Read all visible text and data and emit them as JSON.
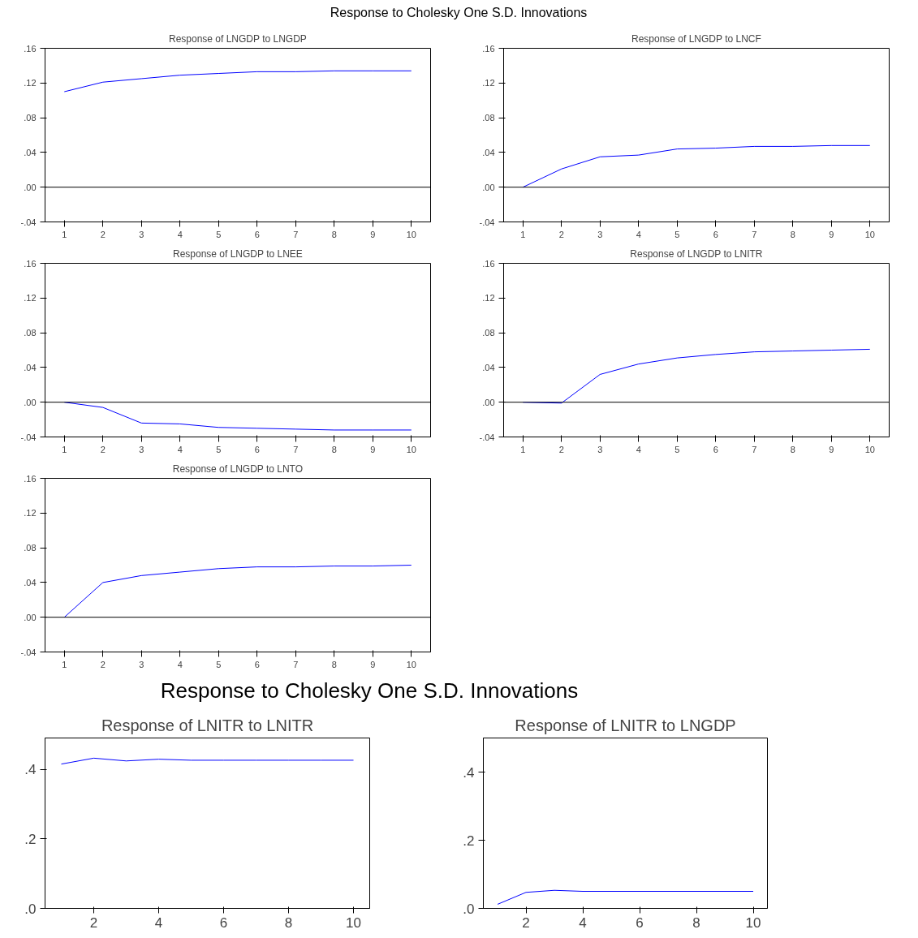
{
  "chart_data": [
    {
      "type": "line",
      "annotations": [
        "Response to Cholesky One S.D. Innovations"
      ],
      "title": "Response of LNGDP to LNGDP",
      "x": [
        1,
        2,
        3,
        4,
        5,
        6,
        7,
        8,
        9,
        10
      ],
      "values": [
        0.11,
        0.121,
        0.125,
        0.129,
        0.131,
        0.133,
        0.133,
        0.134,
        0.134,
        0.134
      ],
      "color": "#0000ff",
      "xlim": [
        0.5,
        10.5
      ],
      "xticks": [
        1,
        2,
        3,
        4,
        5,
        6,
        7,
        8,
        9,
        10
      ],
      "ylim": [
        -0.04,
        0.16
      ],
      "yticks": [
        {
          "value": -0.04,
          "label": "-.04"
        },
        {
          "value": 0,
          "label": ".00"
        },
        {
          "value": 0.04,
          "label": ".04"
        },
        {
          "value": 0.08,
          "label": ".08"
        },
        {
          "value": 0.12,
          "label": ".12"
        },
        {
          "value": 0.16,
          "label": ".16"
        }
      ],
      "ref_lines": [
        {
          "axis": "y",
          "value": 0
        }
      ]
    },
    {
      "type": "line",
      "title": "Response of LNGDP to LNCF",
      "x": [
        1,
        2,
        3,
        4,
        5,
        6,
        7,
        8,
        9,
        10
      ],
      "values": [
        0.0,
        0.021,
        0.035,
        0.037,
        0.044,
        0.045,
        0.047,
        0.047,
        0.048,
        0.048
      ],
      "color": "#0000ff",
      "xlim": [
        0.5,
        10.5
      ],
      "xticks": [
        1,
        2,
        3,
        4,
        5,
        6,
        7,
        8,
        9,
        10
      ],
      "ylim": [
        -0.04,
        0.16
      ],
      "yticks": [
        {
          "value": -0.04,
          "label": "-.04"
        },
        {
          "value": 0,
          "label": ".00"
        },
        {
          "value": 0.04,
          "label": ".04"
        },
        {
          "value": 0.08,
          "label": ".08"
        },
        {
          "value": 0.12,
          "label": ".12"
        },
        {
          "value": 0.16,
          "label": ".16"
        }
      ],
      "ref_lines": [
        {
          "axis": "y",
          "value": 0
        }
      ]
    },
    {
      "type": "line",
      "title": "Response of LNGDP to LNEE",
      "x": [
        1,
        2,
        3,
        4,
        5,
        6,
        7,
        8,
        9,
        10
      ],
      "values": [
        0.0,
        -0.006,
        -0.024,
        -0.025,
        -0.029,
        -0.03,
        -0.031,
        -0.032,
        -0.032,
        -0.032
      ],
      "color": "#0000ff",
      "xlim": [
        0.5,
        10.5
      ],
      "xticks": [
        1,
        2,
        3,
        4,
        5,
        6,
        7,
        8,
        9,
        10
      ],
      "ylim": [
        -0.04,
        0.16
      ],
      "yticks": [
        {
          "value": -0.04,
          "label": "-.04"
        },
        {
          "value": 0,
          "label": ".00"
        },
        {
          "value": 0.04,
          "label": ".04"
        },
        {
          "value": 0.08,
          "label": ".08"
        },
        {
          "value": 0.12,
          "label": ".12"
        },
        {
          "value": 0.16,
          "label": ".16"
        }
      ],
      "ref_lines": [
        {
          "axis": "y",
          "value": 0
        }
      ]
    },
    {
      "type": "line",
      "title": "Response of LNGDP to LNITR",
      "x": [
        1,
        2,
        3,
        4,
        5,
        6,
        7,
        8,
        9,
        10
      ],
      "values": [
        0.0,
        -0.001,
        0.032,
        0.044,
        0.051,
        0.055,
        0.058,
        0.059,
        0.06,
        0.061
      ],
      "color": "#0000ff",
      "xlim": [
        0.5,
        10.5
      ],
      "xticks": [
        1,
        2,
        3,
        4,
        5,
        6,
        7,
        8,
        9,
        10
      ],
      "ylim": [
        -0.04,
        0.16
      ],
      "yticks": [
        {
          "value": -0.04,
          "label": "-.04"
        },
        {
          "value": 0,
          "label": ".00"
        },
        {
          "value": 0.04,
          "label": ".04"
        },
        {
          "value": 0.08,
          "label": ".08"
        },
        {
          "value": 0.12,
          "label": ".12"
        },
        {
          "value": 0.16,
          "label": ".16"
        }
      ],
      "ref_lines": [
        {
          "axis": "y",
          "value": 0
        }
      ]
    },
    {
      "type": "line",
      "title": "Response of LNGDP to LNTO",
      "x": [
        1,
        2,
        3,
        4,
        5,
        6,
        7,
        8,
        9,
        10
      ],
      "values": [
        0.0,
        0.04,
        0.048,
        0.052,
        0.056,
        0.058,
        0.058,
        0.059,
        0.059,
        0.06
      ],
      "color": "#0000ff",
      "xlim": [
        0.5,
        10.5
      ],
      "xticks": [
        1,
        2,
        3,
        4,
        5,
        6,
        7,
        8,
        9,
        10
      ],
      "ylim": [
        -0.04,
        0.16
      ],
      "yticks": [
        {
          "value": -0.04,
          "label": "-.04"
        },
        {
          "value": 0,
          "label": ".00"
        },
        {
          "value": 0.04,
          "label": ".04"
        },
        {
          "value": 0.08,
          "label": ".08"
        },
        {
          "value": 0.12,
          "label": ".12"
        },
        {
          "value": 0.16,
          "label": ".16"
        }
      ],
      "ref_lines": [
        {
          "axis": "y",
          "value": 0
        }
      ]
    },
    {
      "type": "line",
      "annotations": [
        "Response to Cholesky One S.D. Innovations"
      ],
      "title": "Response of LNITR to LNITR",
      "x": [
        1,
        2,
        3,
        4,
        5,
        6,
        7,
        8,
        9,
        10
      ],
      "values": [
        0.415,
        0.432,
        0.424,
        0.429,
        0.426,
        0.426,
        0.426,
        0.426,
        0.426,
        0.426
      ],
      "color": "#0000ff",
      "xlim": [
        0.5,
        10.5
      ],
      "xticks": [
        2,
        4,
        6,
        8,
        10
      ],
      "ylim": [
        0,
        0.49
      ],
      "yticks": [
        {
          "value": 0,
          "label": ".0"
        },
        {
          "value": 0.2,
          "label": ".2"
        },
        {
          "value": 0.4,
          "label": ".4"
        }
      ]
    },
    {
      "type": "line",
      "title": "Response of LNITR to LNGDP",
      "x": [
        1,
        2,
        3,
        4,
        5,
        6,
        7,
        8,
        9,
        10
      ],
      "values": [
        0.012,
        0.047,
        0.053,
        0.05,
        0.05,
        0.05,
        0.05,
        0.05,
        0.05,
        0.05
      ],
      "color": "#0000ff",
      "xlim": [
        0.5,
        10.5
      ],
      "xticks": [
        2,
        4,
        6,
        8,
        10
      ],
      "ylim": [
        0,
        0.5
      ],
      "yticks": [
        {
          "value": 0,
          "label": ".0"
        },
        {
          "value": 0.2,
          "label": ".2"
        },
        {
          "value": 0.4,
          "label": ".4"
        }
      ]
    }
  ]
}
